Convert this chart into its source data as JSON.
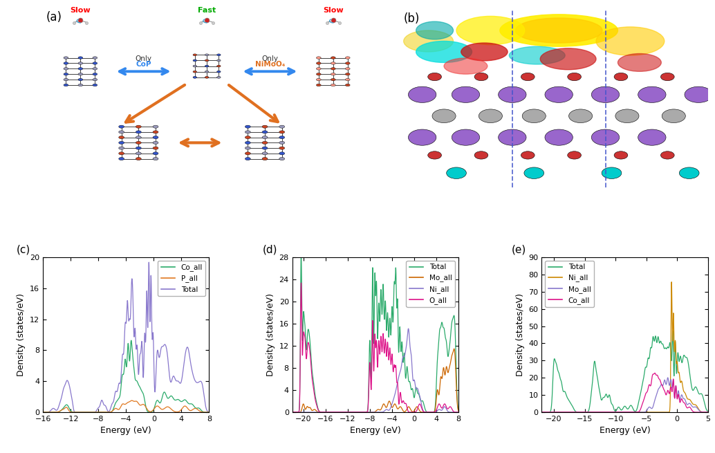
{
  "panel_c": {
    "title": "(c)",
    "xlabel": "Energy (eV)",
    "ylabel": "Density (states/eV)",
    "xlim": [
      -16,
      8
    ],
    "ylim": [
      0,
      20
    ],
    "yticks": [
      0,
      4,
      8,
      12,
      16,
      20
    ],
    "xticks": [
      -16,
      -12,
      -8,
      -4,
      0,
      4,
      8
    ],
    "legend": [
      "Co_all",
      "P_all",
      "Total"
    ],
    "colors": [
      "#2aaa6a",
      "#e07820",
      "#8877cc"
    ]
  },
  "panel_d": {
    "title": "(d)",
    "xlabel": "Energy (eV)",
    "ylabel": "Density (states/eV)",
    "xlim": [
      -22,
      8
    ],
    "ylim": [
      0,
      28
    ],
    "yticks": [
      0,
      4,
      8,
      12,
      16,
      20,
      24,
      28
    ],
    "xticks": [
      -20,
      -16,
      -12,
      -8,
      -4,
      0,
      4,
      8
    ],
    "legend": [
      "Total",
      "Mo_all",
      "Ni_all",
      "O_all"
    ],
    "colors": [
      "#2aaa6a",
      "#cc6600",
      "#8877cc",
      "#dd1188"
    ]
  },
  "panel_e": {
    "title": "(e)",
    "xlabel": "Energy (eV)",
    "ylabel": "Density (states/eV)",
    "xlim": [
      -22,
      5
    ],
    "ylim": [
      0,
      90
    ],
    "yticks": [
      0,
      10,
      20,
      30,
      40,
      50,
      60,
      70,
      80,
      90
    ],
    "xticks": [
      -20,
      -15,
      -10,
      -5,
      0,
      5
    ],
    "legend": [
      "Total",
      "Ni_all",
      "Mo_all",
      "Co_all"
    ],
    "colors": [
      "#2aaa6a",
      "#cc8800",
      "#8877cc",
      "#dd1188"
    ]
  },
  "panel_a_label": "(a)",
  "panel_b_label": "(b)",
  "background_color": "#ffffff"
}
